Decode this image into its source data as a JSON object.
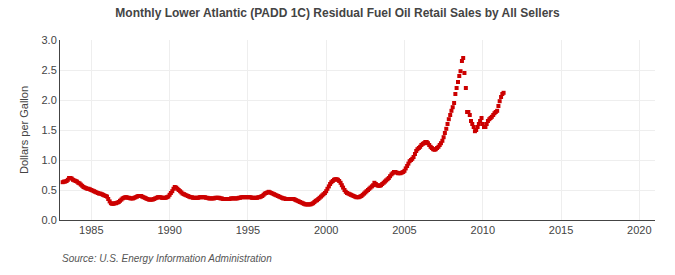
{
  "chart_data": {
    "type": "scatter",
    "title": "Monthly Lower Atlantic (PADD 1C) Residual Fuel Oil Retail Sales by All Sellers",
    "ylabel": "Dollars per Gallon",
    "annotations": [
      "Source: U.S. Energy Information Administration"
    ],
    "color": "#cc0000",
    "marker": "square",
    "grid": true,
    "xlim": [
      1983.0,
      2021.0
    ],
    "ylim": [
      0.0,
      3.0
    ],
    "xticks": [
      1985,
      1990,
      1995,
      2000,
      2005,
      2010,
      2015,
      2020
    ],
    "yticks": [
      {
        "value": 0.0,
        "label": "0.0"
      },
      0.5,
      {
        "value": 1.0,
        "label": "1.0"
      },
      1.5,
      {
        "value": 2.0,
        "label": "2.0"
      },
      2.5,
      {
        "value": 3.0,
        "label": "3.0"
      }
    ],
    "x": [
      1983.17,
      1983.25,
      1983.33,
      1983.42,
      1983.5,
      1983.58,
      1983.67,
      1983.75,
      1983.83,
      1983.92,
      1984.0,
      1984.08,
      1984.17,
      1984.25,
      1984.33,
      1984.42,
      1984.5,
      1984.58,
      1984.67,
      1984.75,
      1984.83,
      1984.92,
      1985.0,
      1985.08,
      1985.17,
      1985.25,
      1985.33,
      1985.42,
      1985.5,
      1985.58,
      1985.67,
      1985.75,
      1985.83,
      1985.92,
      1986.0,
      1986.08,
      1986.17,
      1986.25,
      1986.33,
      1986.42,
      1986.5,
      1986.58,
      1986.67,
      1986.75,
      1986.83,
      1986.92,
      1987.0,
      1987.08,
      1987.17,
      1987.25,
      1987.33,
      1987.42,
      1987.5,
      1987.58,
      1987.67,
      1987.75,
      1987.83,
      1987.92,
      1988.0,
      1988.08,
      1988.17,
      1988.25,
      1988.33,
      1988.42,
      1988.5,
      1988.58,
      1988.67,
      1988.75,
      1988.83,
      1988.92,
      1989.0,
      1989.08,
      1989.17,
      1989.25,
      1989.33,
      1989.42,
      1989.5,
      1989.58,
      1989.67,
      1989.75,
      1989.83,
      1989.92,
      1990.0,
      1990.08,
      1990.17,
      1990.25,
      1990.33,
      1990.42,
      1990.5,
      1990.58,
      1990.67,
      1990.75,
      1990.83,
      1990.92,
      1991.0,
      1991.08,
      1991.17,
      1991.25,
      1991.33,
      1991.42,
      1991.5,
      1991.58,
      1991.67,
      1991.75,
      1991.83,
      1991.92,
      1992.0,
      1992.08,
      1992.17,
      1992.25,
      1992.33,
      1992.42,
      1992.5,
      1992.58,
      1992.67,
      1992.75,
      1992.83,
      1992.92,
      1993.0,
      1993.08,
      1993.17,
      1993.25,
      1993.33,
      1993.42,
      1993.5,
      1993.58,
      1993.67,
      1993.75,
      1993.83,
      1993.92,
      1994.0,
      1994.08,
      1994.17,
      1994.25,
      1994.33,
      1994.42,
      1994.5,
      1994.58,
      1994.67,
      1994.75,
      1994.83,
      1994.92,
      1995.0,
      1995.08,
      1995.17,
      1995.25,
      1995.33,
      1995.42,
      1995.5,
      1995.58,
      1995.67,
      1995.75,
      1995.83,
      1995.92,
      1996.0,
      1996.08,
      1996.17,
      1996.25,
      1996.33,
      1996.42,
      1996.5,
      1996.58,
      1996.67,
      1996.75,
      1996.83,
      1996.92,
      1997.0,
      1997.08,
      1997.17,
      1997.25,
      1997.33,
      1997.42,
      1997.5,
      1997.58,
      1997.67,
      1997.75,
      1997.83,
      1997.92,
      1998.0,
      1998.08,
      1998.17,
      1998.25,
      1998.33,
      1998.42,
      1998.5,
      1998.58,
      1998.67,
      1998.75,
      1998.83,
      1998.92,
      1999.0,
      1999.08,
      1999.17,
      1999.25,
      1999.33,
      1999.42,
      1999.5,
      1999.58,
      1999.67,
      1999.75,
      1999.83,
      1999.92,
      2000.0,
      2000.08,
      2000.17,
      2000.25,
      2000.33,
      2000.42,
      2000.5,
      2000.58,
      2000.67,
      2000.75,
      2000.83,
      2000.92,
      2001.0,
      2001.08,
      2001.17,
      2001.25,
      2001.33,
      2001.42,
      2001.5,
      2001.58,
      2001.67,
      2001.75,
      2001.83,
      2001.92,
      2002.0,
      2002.08,
      2002.17,
      2002.25,
      2002.33,
      2002.42,
      2002.5,
      2002.58,
      2002.67,
      2002.75,
      2002.83,
      2002.92,
      2003.0,
      2003.08,
      2003.17,
      2003.25,
      2003.33,
      2003.42,
      2003.5,
      2003.58,
      2003.67,
      2003.75,
      2003.83,
      2003.92,
      2004.0,
      2004.08,
      2004.17,
      2004.25,
      2004.33,
      2004.42,
      2004.5,
      2004.58,
      2004.67,
      2004.75,
      2004.83,
      2004.92,
      2005.0,
      2005.08,
      2005.17,
      2005.25,
      2005.33,
      2005.42,
      2005.5,
      2005.58,
      2005.67,
      2005.75,
      2005.83,
      2005.92,
      2006.0,
      2006.08,
      2006.17,
      2006.25,
      2006.33,
      2006.42,
      2006.5,
      2006.58,
      2006.67,
      2006.75,
      2006.83,
      2006.92,
      2007.0,
      2007.08,
      2007.17,
      2007.25,
      2007.33,
      2007.42,
      2007.5,
      2007.58,
      2007.67,
      2007.75,
      2007.83,
      2007.92,
      2008.0,
      2008.08,
      2008.17,
      2008.25,
      2008.33,
      2008.42,
      2008.5,
      2008.58,
      2008.67,
      2008.75,
      2008.83,
      2008.92,
      2009.0,
      2009.08,
      2009.17,
      2009.25,
      2009.33,
      2009.42,
      2009.5,
      2009.58,
      2009.67,
      2009.75,
      2009.83,
      2009.92,
      2010.0,
      2010.08,
      2010.17,
      2010.25,
      2010.33,
      2010.42,
      2010.5,
      2010.58,
      2010.67,
      2010.75,
      2010.83,
      2010.92,
      2011.0,
      2011.08,
      2011.17,
      2011.25,
      2011.33
    ],
    "values": [
      0.63,
      0.64,
      0.64,
      0.65,
      0.67,
      0.7,
      0.7,
      0.69,
      0.67,
      0.66,
      0.65,
      0.64,
      0.62,
      0.61,
      0.59,
      0.57,
      0.55,
      0.54,
      0.53,
      0.52,
      0.52,
      0.51,
      0.5,
      0.49,
      0.48,
      0.47,
      0.46,
      0.45,
      0.44,
      0.44,
      0.43,
      0.42,
      0.41,
      0.4,
      0.39,
      0.35,
      0.31,
      0.28,
      0.27,
      0.27,
      0.28,
      0.28,
      0.29,
      0.3,
      0.32,
      0.34,
      0.36,
      0.37,
      0.38,
      0.38,
      0.37,
      0.37,
      0.36,
      0.36,
      0.36,
      0.37,
      0.38,
      0.39,
      0.4,
      0.4,
      0.4,
      0.39,
      0.38,
      0.37,
      0.36,
      0.35,
      0.34,
      0.34,
      0.34,
      0.34,
      0.35,
      0.36,
      0.37,
      0.38,
      0.38,
      0.38,
      0.37,
      0.37,
      0.37,
      0.37,
      0.38,
      0.39,
      0.42,
      0.45,
      0.48,
      0.52,
      0.55,
      0.54,
      0.52,
      0.5,
      0.48,
      0.46,
      0.44,
      0.43,
      0.42,
      0.41,
      0.4,
      0.39,
      0.38,
      0.38,
      0.37,
      0.37,
      0.37,
      0.37,
      0.37,
      0.38,
      0.38,
      0.38,
      0.38,
      0.38,
      0.37,
      0.37,
      0.36,
      0.36,
      0.36,
      0.36,
      0.36,
      0.37,
      0.37,
      0.37,
      0.37,
      0.36,
      0.36,
      0.35,
      0.35,
      0.35,
      0.35,
      0.35,
      0.35,
      0.36,
      0.36,
      0.36,
      0.36,
      0.36,
      0.36,
      0.37,
      0.37,
      0.38,
      0.38,
      0.38,
      0.38,
      0.38,
      0.38,
      0.38,
      0.38,
      0.37,
      0.37,
      0.37,
      0.37,
      0.37,
      0.38,
      0.38,
      0.39,
      0.4,
      0.42,
      0.44,
      0.45,
      0.46,
      0.47,
      0.46,
      0.45,
      0.44,
      0.43,
      0.42,
      0.41,
      0.4,
      0.39,
      0.38,
      0.37,
      0.36,
      0.36,
      0.35,
      0.35,
      0.35,
      0.35,
      0.35,
      0.35,
      0.35,
      0.34,
      0.33,
      0.32,
      0.31,
      0.3,
      0.29,
      0.28,
      0.27,
      0.26,
      0.26,
      0.26,
      0.26,
      0.26,
      0.27,
      0.28,
      0.3,
      0.32,
      0.33,
      0.35,
      0.37,
      0.39,
      0.41,
      0.43,
      0.45,
      0.48,
      0.52,
      0.56,
      0.6,
      0.63,
      0.65,
      0.67,
      0.68,
      0.68,
      0.67,
      0.65,
      0.62,
      0.58,
      0.54,
      0.5,
      0.47,
      0.45,
      0.44,
      0.43,
      0.42,
      0.41,
      0.4,
      0.39,
      0.38,
      0.38,
      0.38,
      0.39,
      0.4,
      0.42,
      0.44,
      0.46,
      0.48,
      0.5,
      0.52,
      0.54,
      0.56,
      0.58,
      0.62,
      0.6,
      0.58,
      0.57,
      0.57,
      0.58,
      0.6,
      0.62,
      0.64,
      0.66,
      0.68,
      0.7,
      0.73,
      0.76,
      0.78,
      0.8,
      0.8,
      0.79,
      0.78,
      0.78,
      0.78,
      0.79,
      0.8,
      0.82,
      0.86,
      0.9,
      0.94,
      0.98,
      1.0,
      1.02,
      1.05,
      1.1,
      1.15,
      1.18,
      1.2,
      1.22,
      1.25,
      1.27,
      1.28,
      1.3,
      1.3,
      1.28,
      1.25,
      1.22,
      1.2,
      1.18,
      1.17,
      1.18,
      1.2,
      1.22,
      1.25,
      1.28,
      1.32,
      1.38,
      1.45,
      1.52,
      1.6,
      1.68,
      1.75,
      1.82,
      1.88,
      1.95,
      2.1,
      2.2,
      2.3,
      2.4,
      2.48,
      2.65,
      2.7,
      2.45,
      2.2,
      1.8,
      1.8,
      1.75,
      1.65,
      1.6,
      1.55,
      1.48,
      1.5,
      1.55,
      1.6,
      1.65,
      1.7,
      1.6,
      1.55,
      1.55,
      1.6,
      1.65,
      1.68,
      1.7,
      1.72,
      1.75,
      1.78,
      1.8,
      1.82,
      1.9,
      1.98,
      2.05,
      2.1,
      2.12
    ]
  }
}
